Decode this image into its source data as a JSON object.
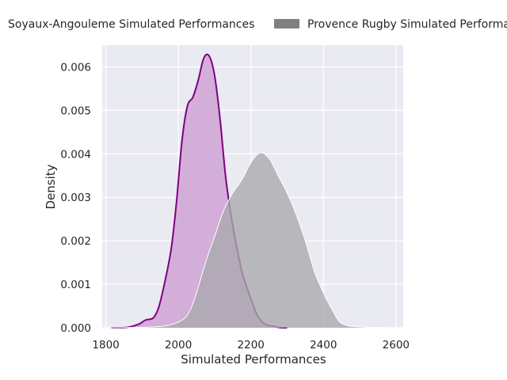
{
  "chart_data": {
    "type": "area",
    "title": "",
    "xlabel": "Simulated Performances",
    "ylabel": "Density",
    "xlim": [
      1790,
      2620
    ],
    "ylim": [
      0,
      0.0065
    ],
    "x_ticks": [
      1800,
      2000,
      2200,
      2400,
      2600
    ],
    "x_tick_labels": [
      "1800",
      "2000",
      "2200",
      "2400",
      "2600"
    ],
    "y_ticks": [
      0,
      0.001,
      0.002,
      0.003,
      0.004,
      0.005,
      0.006
    ],
    "y_tick_labels": [
      "0.000",
      "0.001",
      "0.002",
      "0.003",
      "0.004",
      "0.005",
      "0.006"
    ],
    "grid": true,
    "legend_position": "top",
    "series": [
      {
        "name": "Soyaux-Angouleme Simulated Performances",
        "color": "#800080",
        "fill": "#cfa3d5",
        "points": [
          [
            1815,
            0
          ],
          [
            1860,
            1e-05
          ],
          [
            1890,
            8e-05
          ],
          [
            1910,
            0.00018
          ],
          [
            1930,
            0.00022
          ],
          [
            1945,
            0.00045
          ],
          [
            1960,
            0.00095
          ],
          [
            1980,
            0.0018
          ],
          [
            1995,
            0.0029
          ],
          [
            2010,
            0.0043
          ],
          [
            2025,
            0.0051
          ],
          [
            2040,
            0.0053
          ],
          [
            2055,
            0.0057
          ],
          [
            2070,
            0.0062
          ],
          [
            2085,
            0.00625
          ],
          [
            2100,
            0.0058
          ],
          [
            2115,
            0.0048
          ],
          [
            2130,
            0.0035
          ],
          [
            2145,
            0.0026
          ],
          [
            2160,
            0.0019
          ],
          [
            2175,
            0.0013
          ],
          [
            2190,
            0.0009
          ],
          [
            2205,
            0.00055
          ],
          [
            2220,
            0.00025
          ],
          [
            2240,
            8e-05
          ],
          [
            2260,
            4e-05
          ],
          [
            2280,
            5e-06
          ],
          [
            2300,
            0
          ]
        ]
      },
      {
        "name": "Provence Rugby Simulated Performances",
        "color": "#808080",
        "fill": "#a9a9ad",
        "points": [
          [
            1800,
            0
          ],
          [
            1900,
            1e-05
          ],
          [
            1950,
            3e-05
          ],
          [
            1980,
            7e-05
          ],
          [
            2000,
            0.00013
          ],
          [
            2020,
            0.00024
          ],
          [
            2035,
            0.00045
          ],
          [
            2050,
            0.0008
          ],
          [
            2075,
            0.0015
          ],
          [
            2100,
            0.0021
          ],
          [
            2125,
            0.0027
          ],
          [
            2150,
            0.0031
          ],
          [
            2175,
            0.0034
          ],
          [
            2200,
            0.0038
          ],
          [
            2225,
            0.00402
          ],
          [
            2250,
            0.0039
          ],
          [
            2275,
            0.0035
          ],
          [
            2300,
            0.0031
          ],
          [
            2325,
            0.0026
          ],
          [
            2350,
            0.002
          ],
          [
            2375,
            0.0013
          ],
          [
            2400,
            0.0008
          ],
          [
            2425,
            0.0004
          ],
          [
            2450,
            0.0001
          ],
          [
            2500,
            2e-05
          ],
          [
            2600,
            0
          ]
        ]
      }
    ],
    "legend_labels": [
      "Soyaux-Angouleme Simulated Performances",
      "Provence Rugby Simulated Performa"
    ]
  }
}
